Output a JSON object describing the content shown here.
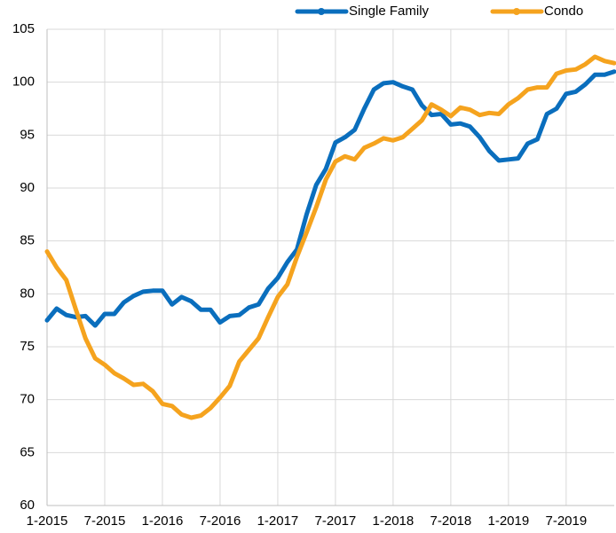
{
  "chart_data": {
    "type": "line",
    "categories": [
      "1-2015",
      null,
      null,
      null,
      null,
      null,
      "7-2015",
      null,
      null,
      null,
      null,
      null,
      "1-2016",
      null,
      null,
      null,
      null,
      null,
      "7-2016",
      null,
      null,
      null,
      null,
      null,
      "1-2017",
      null,
      null,
      null,
      null,
      null,
      "7-2017",
      null,
      null,
      null,
      null,
      null,
      "1-2018",
      null,
      null,
      null,
      null,
      null,
      "7-2018",
      null,
      null,
      null,
      null,
      null,
      "1-2019",
      null,
      null,
      null,
      null,
      null,
      "7-2019",
      null,
      null,
      null,
      null,
      null
    ],
    "series": [
      {
        "name": "Single Family",
        "color": "#0a6ebd",
        "values": [
          77.5,
          78.6,
          78.0,
          77.8,
          77.9,
          77.0,
          78.1,
          78.1,
          79.2,
          79.8,
          80.2,
          80.3,
          80.3,
          79.0,
          79.7,
          79.3,
          78.5,
          78.5,
          77.3,
          77.9,
          78.0,
          78.7,
          79.0,
          80.5,
          81.5,
          83.0,
          84.2,
          87.5,
          90.3,
          91.8,
          94.3,
          94.8,
          95.5,
          97.5,
          99.3,
          99.9,
          100.0,
          99.6,
          99.3,
          97.8,
          96.9,
          97.0,
          96.0,
          96.1,
          95.8,
          94.8,
          93.5,
          92.6,
          92.7,
          92.8,
          94.2,
          94.6,
          97.0,
          97.5,
          98.9,
          99.1,
          99.8,
          100.7,
          100.7,
          101.0
        ]
      },
      {
        "name": "Condo",
        "color": "#f5a31e",
        "values": [
          84.0,
          82.5,
          81.3,
          78.5,
          75.8,
          73.9,
          73.3,
          72.5,
          72.0,
          71.4,
          71.5,
          70.8,
          69.6,
          69.4,
          68.6,
          68.3,
          68.5,
          69.2,
          70.2,
          71.3,
          73.6,
          74.7,
          75.8,
          77.8,
          79.7,
          80.9,
          83.5,
          85.8,
          88.2,
          90.8,
          92.5,
          93.0,
          92.7,
          93.8,
          94.2,
          94.7,
          94.5,
          94.8,
          95.6,
          96.4,
          97.9,
          97.4,
          96.8,
          97.6,
          97.4,
          96.9,
          97.1,
          97.0,
          97.9,
          98.5,
          99.3,
          99.5,
          99.5,
          100.8,
          101.1,
          101.2,
          101.7,
          102.4,
          102.0,
          101.8
        ]
      }
    ],
    "ylim": [
      60,
      105
    ],
    "yticks": [
      60,
      65,
      70,
      75,
      80,
      85,
      90,
      95,
      100,
      105
    ],
    "grid": true,
    "legend": "top"
  }
}
